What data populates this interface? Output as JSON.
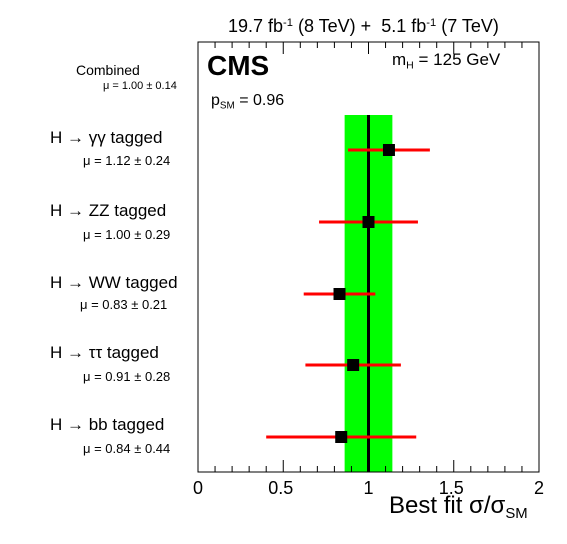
{
  "chart_data": {
    "type": "scatter",
    "title": "19.7 fb-1 (8 TeV) + 5.1 fb-1 (7 TeV)",
    "header": {
      "lumi1": "19.7 fb",
      "lumi1_exp": "-1",
      "energy1": "(8 TeV) +",
      "lumi2": "5.1 fb",
      "lumi2_exp": "-1",
      "energy2": "(7 TeV)"
    },
    "experiment": "CMS",
    "mass_label": {
      "m": "m",
      "sub": "H",
      "value": "= 125 GeV"
    },
    "psm_label": {
      "p": "p",
      "sub": "SM",
      "value": "= 0.96"
    },
    "xlabel": {
      "main": "Best fit σ/σ",
      "sub": "SM"
    },
    "xlim": [
      0,
      2
    ],
    "xticks": [
      "0",
      "0.5",
      "1",
      "1.5",
      "2"
    ],
    "combined": {
      "label": "Combined",
      "mu_text": "μ = 1.00 ± 0.14",
      "mu": 1.0,
      "err": 0.14
    },
    "channels": [
      {
        "label": "H → γγ tagged",
        "mu_text": "μ = 1.12 ± 0.24",
        "mu": 1.12,
        "err": 0.24
      },
      {
        "label": "H → ZZ tagged",
        "mu_text": "μ = 1.00 ± 0.29",
        "mu": 1.0,
        "err": 0.29
      },
      {
        "label": "H → WW tagged",
        "mu_text": "μ = 0.83 ± 0.21",
        "mu": 0.83,
        "err": 0.21
      },
      {
        "label": "H → ττ tagged",
        "mu_text": "μ = 0.91 ± 0.28",
        "mu": 0.91,
        "err": 0.28
      },
      {
        "label": "H → bb tagged",
        "mu_text": "μ = 0.84 ± 0.44",
        "mu": 0.84,
        "err": 0.44
      }
    ],
    "colors": {
      "band": "#00ff00",
      "errorbar": "#ff0000",
      "marker": "#000000",
      "sm_line": "#000000"
    }
  }
}
